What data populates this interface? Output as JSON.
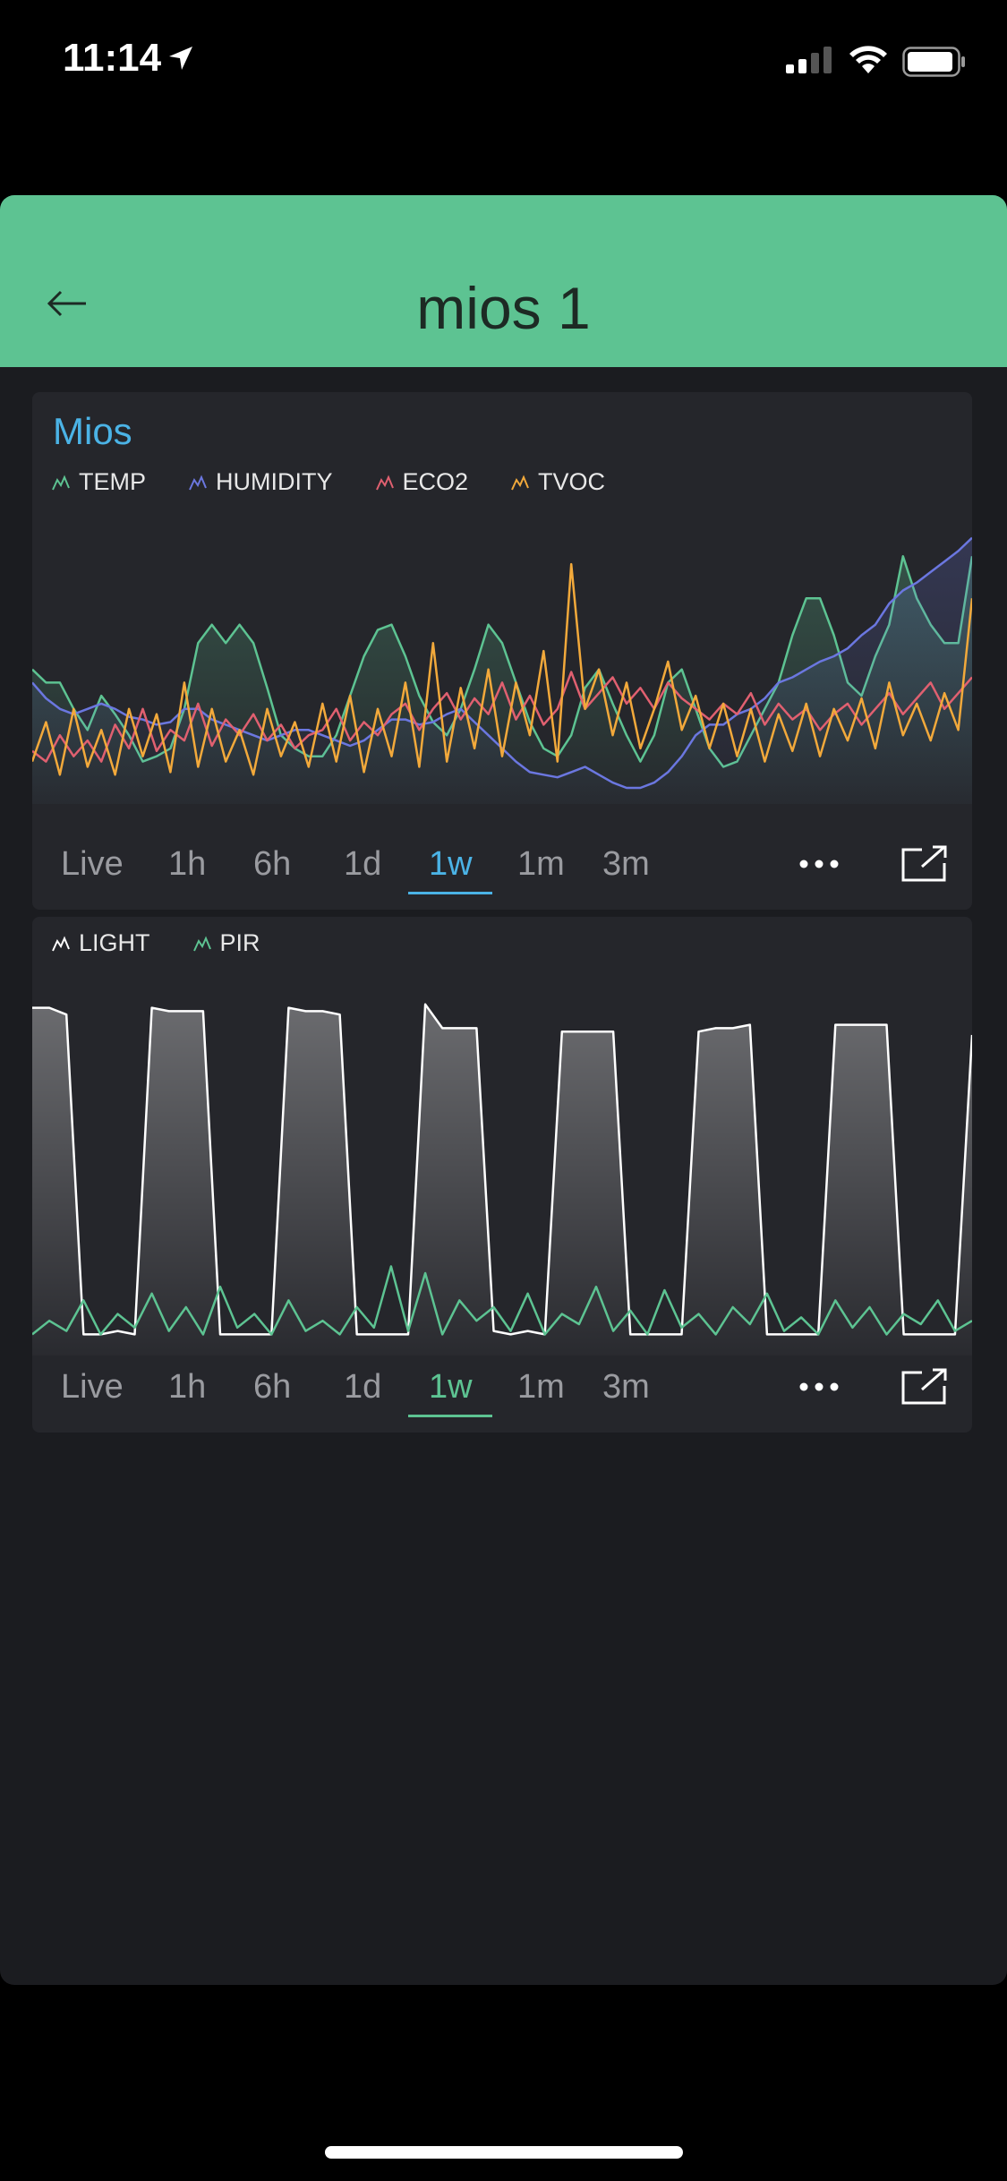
{
  "status_bar": {
    "time": "11:14",
    "icons": [
      "location-arrow-icon",
      "cellular-signal-icon",
      "wifi-icon",
      "battery-icon"
    ]
  },
  "header": {
    "title": "mios 1",
    "back_icon": "arrow-left-icon",
    "color": "#5dc392"
  },
  "chart1": {
    "title": "Mios",
    "legend": [
      "TEMP",
      "HUMIDITY",
      "ECO2",
      "TVOC"
    ],
    "tabs": [
      "Live",
      "1h",
      "6h",
      "1d",
      "1w",
      "1m",
      "3m"
    ],
    "selected_tab": "1w",
    "accent": "#4bb3e6"
  },
  "chart2": {
    "legend": [
      "LIGHT",
      "PIR"
    ],
    "tabs": [
      "Live",
      "1h",
      "6h",
      "1d",
      "1w",
      "1m",
      "3m"
    ],
    "selected_tab": "1w",
    "accent": "#5dc392"
  },
  "chart_data": [
    {
      "type": "line",
      "title": "Mios",
      "legend_placement": "top-left",
      "grid": false,
      "series": [
        {
          "name": "TEMP",
          "color": "#5dc392",
          "values": [
            0.45,
            0.4,
            0.4,
            0.3,
            0.22,
            0.35,
            0.28,
            0.2,
            0.1,
            0.12,
            0.15,
            0.3,
            0.55,
            0.62,
            0.55,
            0.62,
            0.55,
            0.38,
            0.2,
            0.15,
            0.12,
            0.12,
            0.2,
            0.35,
            0.5,
            0.6,
            0.62,
            0.5,
            0.35,
            0.25,
            0.2,
            0.3,
            0.45,
            0.62,
            0.55,
            0.4,
            0.25,
            0.15,
            0.12,
            0.2,
            0.38,
            0.45,
            0.32,
            0.2,
            0.1,
            0.2,
            0.4,
            0.45,
            0.3,
            0.15,
            0.08,
            0.1,
            0.2,
            0.3,
            0.4,
            0.58,
            0.72,
            0.72,
            0.58,
            0.4,
            0.35,
            0.5,
            0.62,
            0.88,
            0.72,
            0.62,
            0.55,
            0.55,
            0.88
          ]
        },
        {
          "name": "HUMIDITY",
          "color": "#6b77e0",
          "values": [
            0.4,
            0.34,
            0.3,
            0.28,
            0.3,
            0.32,
            0.3,
            0.27,
            0.26,
            0.24,
            0.25,
            0.3,
            0.3,
            0.26,
            0.24,
            0.22,
            0.2,
            0.18,
            0.2,
            0.22,
            0.22,
            0.2,
            0.18,
            0.16,
            0.18,
            0.22,
            0.26,
            0.26,
            0.24,
            0.25,
            0.28,
            0.3,
            0.25,
            0.2,
            0.15,
            0.1,
            0.06,
            0.05,
            0.04,
            0.06,
            0.08,
            0.05,
            0.02,
            0.0,
            0.0,
            0.02,
            0.06,
            0.12,
            0.2,
            0.24,
            0.24,
            0.28,
            0.3,
            0.34,
            0.4,
            0.42,
            0.45,
            0.48,
            0.5,
            0.53,
            0.58,
            0.62,
            0.7,
            0.75,
            0.78,
            0.82,
            0.86,
            0.9,
            0.95
          ]
        },
        {
          "name": "ECO2",
          "color": "#e06070",
          "values": [
            0.14,
            0.1,
            0.2,
            0.12,
            0.18,
            0.1,
            0.24,
            0.15,
            0.3,
            0.14,
            0.22,
            0.18,
            0.32,
            0.16,
            0.26,
            0.2,
            0.28,
            0.18,
            0.24,
            0.15,
            0.2,
            0.22,
            0.3,
            0.18,
            0.25,
            0.2,
            0.28,
            0.32,
            0.22,
            0.3,
            0.36,
            0.26,
            0.34,
            0.28,
            0.4,
            0.26,
            0.35,
            0.24,
            0.3,
            0.44,
            0.3,
            0.36,
            0.42,
            0.32,
            0.38,
            0.3,
            0.4,
            0.34,
            0.3,
            0.26,
            0.32,
            0.28,
            0.36,
            0.24,
            0.32,
            0.26,
            0.3,
            0.22,
            0.28,
            0.32,
            0.24,
            0.3,
            0.36,
            0.28,
            0.34,
            0.4,
            0.3,
            0.36,
            0.42
          ]
        },
        {
          "name": "TVOC",
          "color": "#f2a93b",
          "values": [
            0.1,
            0.25,
            0.05,
            0.3,
            0.08,
            0.22,
            0.05,
            0.3,
            0.12,
            0.28,
            0.06,
            0.4,
            0.08,
            0.3,
            0.1,
            0.22,
            0.05,
            0.3,
            0.12,
            0.25,
            0.08,
            0.32,
            0.1,
            0.35,
            0.06,
            0.3,
            0.12,
            0.4,
            0.08,
            0.55,
            0.1,
            0.38,
            0.15,
            0.45,
            0.12,
            0.4,
            0.2,
            0.52,
            0.1,
            0.85,
            0.3,
            0.45,
            0.2,
            0.4,
            0.15,
            0.3,
            0.48,
            0.22,
            0.35,
            0.15,
            0.32,
            0.12,
            0.3,
            0.1,
            0.28,
            0.14,
            0.32,
            0.12,
            0.3,
            0.18,
            0.34,
            0.15,
            0.4,
            0.2,
            0.32,
            0.18,
            0.36,
            0.22,
            0.72
          ]
        }
      ]
    },
    {
      "type": "line",
      "legend_placement": "top-left",
      "grid": false,
      "series": [
        {
          "name": "LIGHT",
          "color": "#ffffff",
          "values": [
            0.98,
            0.98,
            0.96,
            0.02,
            0.02,
            0.03,
            0.02,
            0.98,
            0.97,
            0.97,
            0.97,
            0.02,
            0.02,
            0.02,
            0.02,
            0.98,
            0.97,
            0.97,
            0.96,
            0.02,
            0.02,
            0.02,
            0.02,
            0.99,
            0.92,
            0.92,
            0.92,
            0.03,
            0.02,
            0.03,
            0.02,
            0.91,
            0.91,
            0.91,
            0.91,
            0.02,
            0.02,
            0.02,
            0.02,
            0.91,
            0.92,
            0.92,
            0.93,
            0.02,
            0.02,
            0.02,
            0.02,
            0.93,
            0.93,
            0.93,
            0.93,
            0.02,
            0.02,
            0.02,
            0.02,
            0.9
          ]
        },
        {
          "name": "PIR",
          "color": "#5dc392",
          "values": [
            0.02,
            0.06,
            0.03,
            0.12,
            0.02,
            0.08,
            0.04,
            0.14,
            0.03,
            0.1,
            0.02,
            0.16,
            0.04,
            0.08,
            0.02,
            0.12,
            0.03,
            0.06,
            0.02,
            0.1,
            0.04,
            0.22,
            0.03,
            0.2,
            0.02,
            0.12,
            0.06,
            0.1,
            0.03,
            0.14,
            0.02,
            0.08,
            0.05,
            0.16,
            0.03,
            0.09,
            0.02,
            0.15,
            0.04,
            0.08,
            0.02,
            0.1,
            0.05,
            0.14,
            0.03,
            0.07,
            0.02,
            0.12,
            0.04,
            0.1,
            0.02,
            0.08,
            0.05,
            0.12,
            0.03,
            0.06
          ]
        }
      ]
    }
  ]
}
